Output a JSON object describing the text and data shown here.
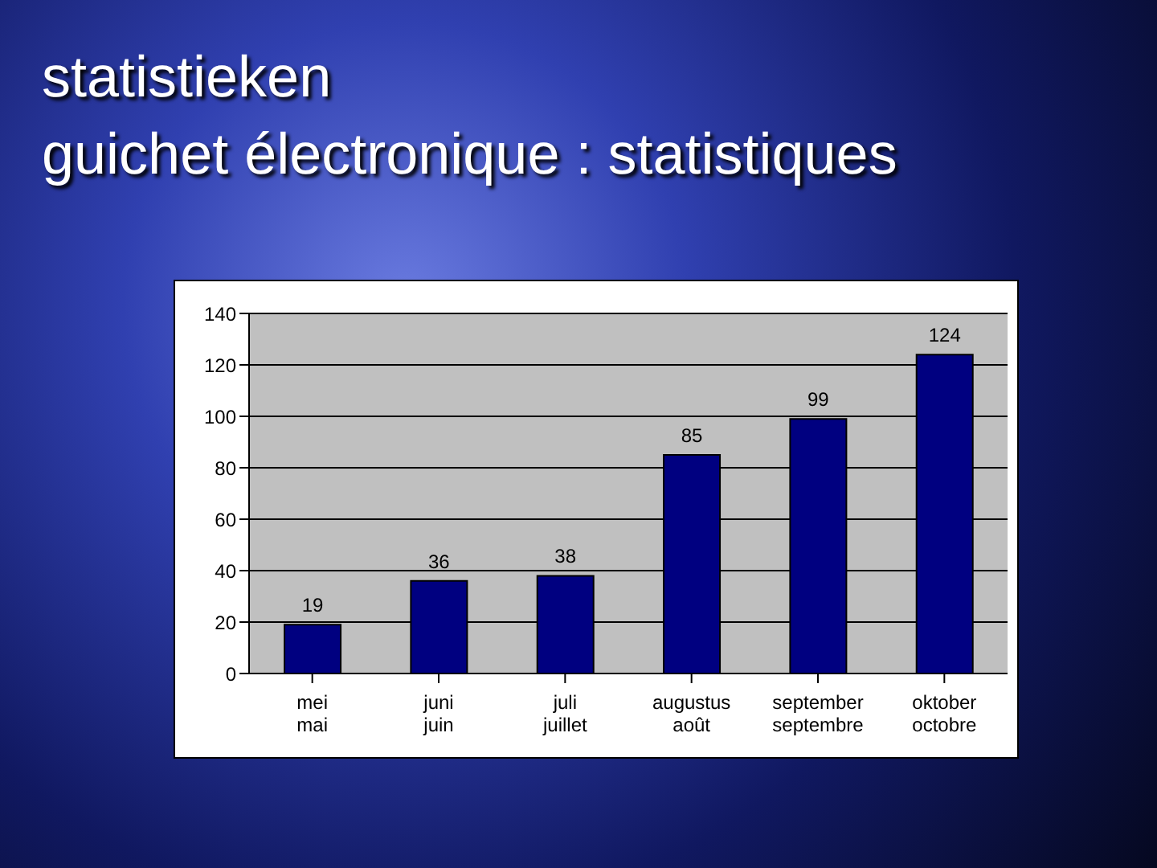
{
  "chart_data": {
    "type": "bar",
    "title": "statistieken\nguichet électronique : statistiques",
    "categories": [
      "mei\nmai",
      "juni\njuin",
      "juli\njuillet",
      "augustus\naoût",
      "september\nseptembre",
      "oktober\noctobre"
    ],
    "values": [
      19,
      36,
      38,
      85,
      99,
      124
    ],
    "color": "#000080",
    "ylim": [
      0,
      140
    ],
    "yticks": [
      0,
      20,
      40,
      60,
      80,
      100,
      120,
      140
    ],
    "grid": "y",
    "data_labels": true
  }
}
